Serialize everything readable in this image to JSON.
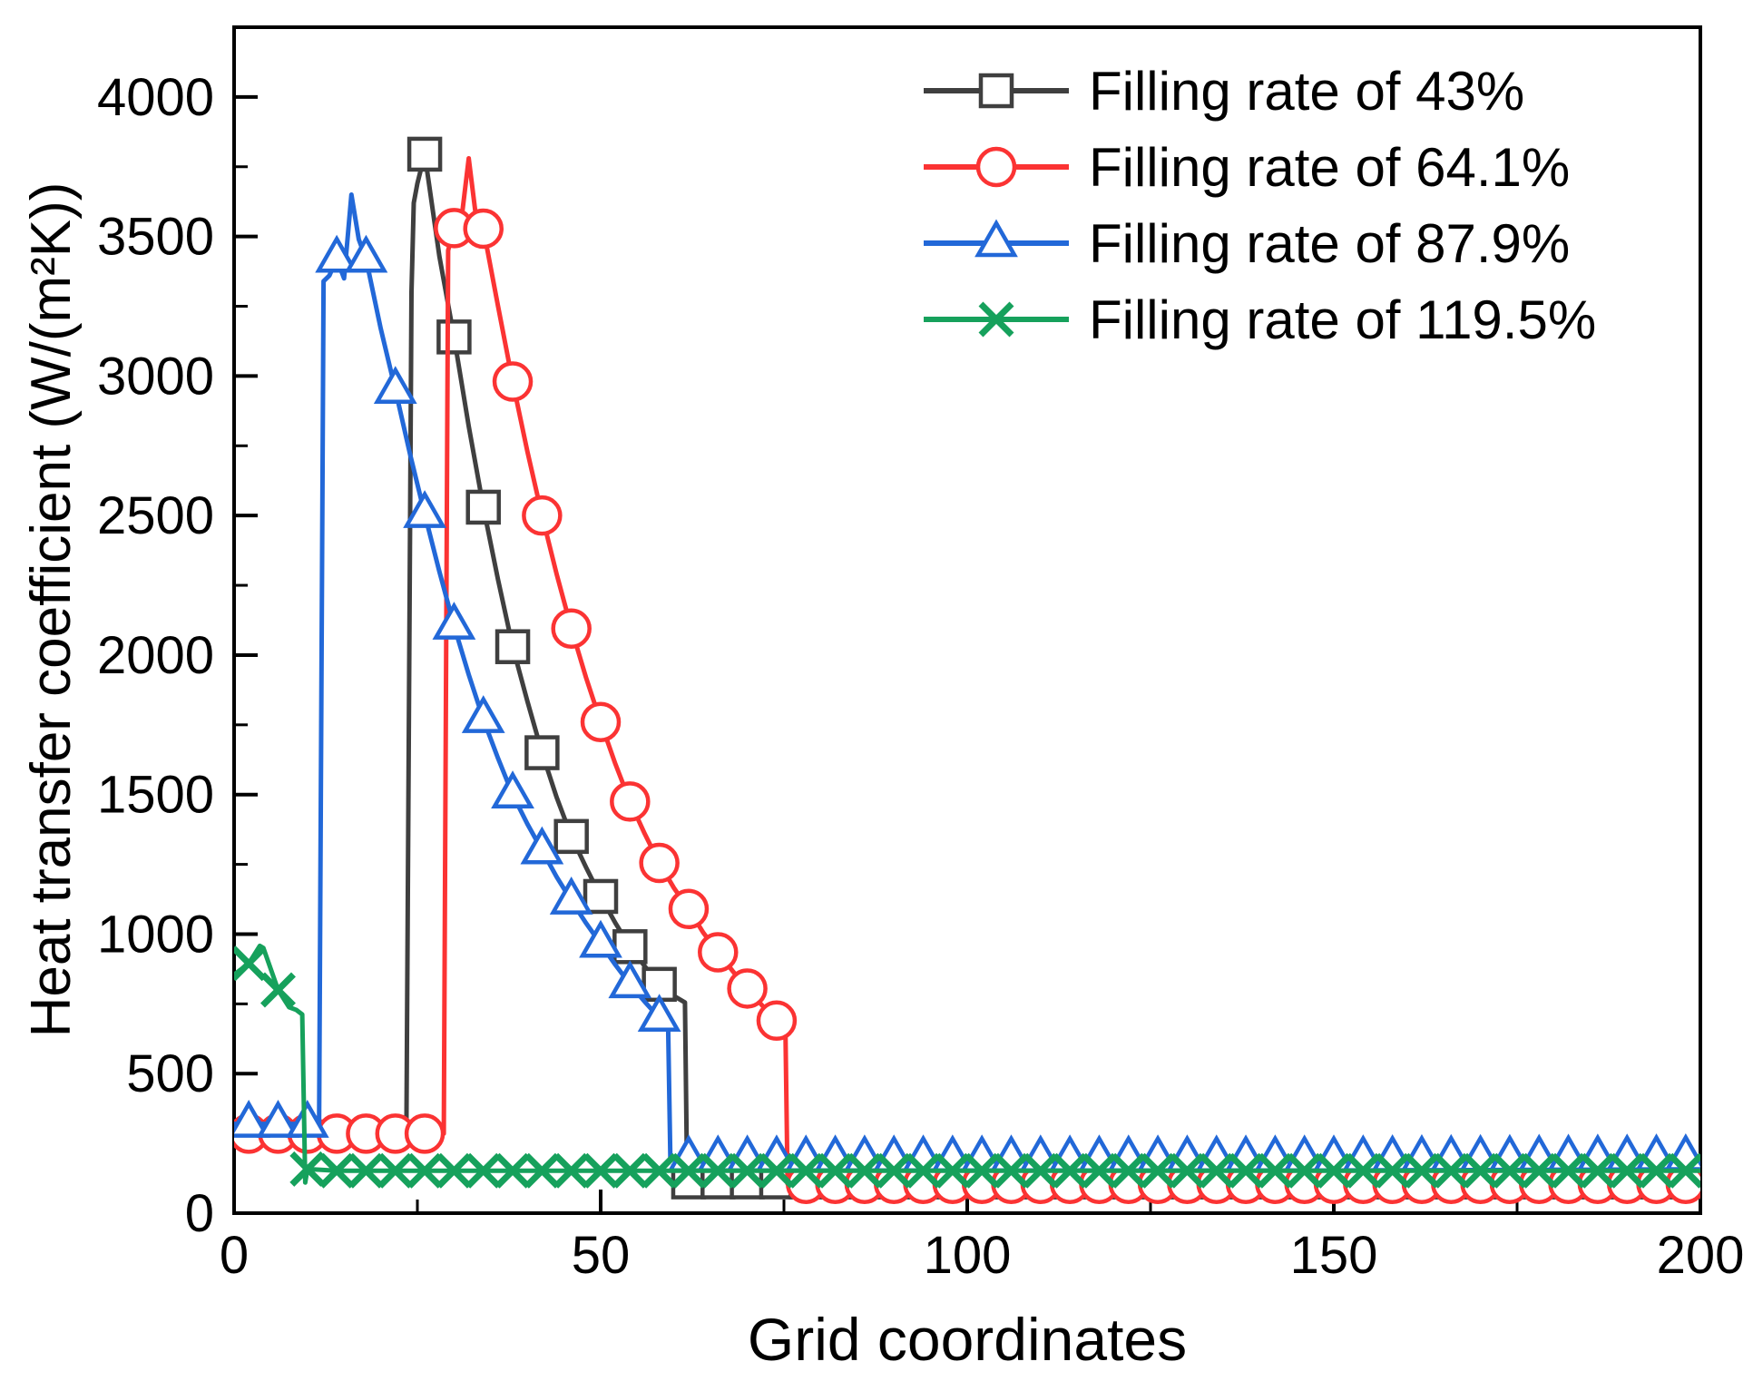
{
  "chart_data": {
    "type": "line",
    "title": "",
    "xlabel": "Grid coordinates",
    "ylabel": "Heat transfer coefficient (W/(m²K))",
    "xlim": [
      0,
      200
    ],
    "ylim": [
      0,
      4250
    ],
    "xticks": [
      0,
      50,
      100,
      150,
      200
    ],
    "xtick_minor_step": 25,
    "yticks": [
      0,
      500,
      1000,
      1500,
      2000,
      2500,
      3000,
      3500,
      4000
    ],
    "ytick_minor_step": 250,
    "grid": false,
    "legend_position": "top-right-inside",
    "marker_interval": 4,
    "frame_color": "#000000",
    "series": [
      {
        "name": "Filling rate of 43%",
        "color": "#3f3f3f",
        "marker": "square",
        "marker_first_x": 26,
        "marker_last_x": 198,
        "points": [
          [
            0,
            295
          ],
          [
            6,
            295
          ],
          [
            12,
            295
          ],
          [
            18,
            295
          ],
          [
            23.5,
            295
          ],
          [
            24.2,
            3300
          ],
          [
            24.5,
            3620
          ],
          [
            25,
            3690
          ],
          [
            26,
            3795
          ],
          [
            28,
            3430
          ],
          [
            30,
            3140
          ],
          [
            32,
            2820
          ],
          [
            34,
            2530
          ],
          [
            36,
            2270
          ],
          [
            38,
            2030
          ],
          [
            40,
            1835
          ],
          [
            42,
            1650
          ],
          [
            44,
            1490
          ],
          [
            46,
            1350
          ],
          [
            48,
            1240
          ],
          [
            50,
            1135
          ],
          [
            52,
            1040
          ],
          [
            54,
            955
          ],
          [
            56,
            885
          ],
          [
            58,
            820
          ],
          [
            60,
            778
          ],
          [
            61.5,
            755
          ],
          [
            61.8,
            112
          ],
          [
            64,
            112
          ],
          [
            100,
            112
          ],
          [
            150,
            112
          ],
          [
            200,
            112
          ]
        ]
      },
      {
        "name": "Filling rate of 64.1%",
        "color": "#fb3333",
        "marker": "circle",
        "marker_first_x": 2,
        "marker_last_x": 198,
        "points": [
          [
            0,
            285
          ],
          [
            6,
            285
          ],
          [
            12,
            285
          ],
          [
            18,
            285
          ],
          [
            24,
            285
          ],
          [
            28.6,
            285
          ],
          [
            29.2,
            3450
          ],
          [
            30,
            3530
          ],
          [
            31,
            3560
          ],
          [
            32,
            3780
          ],
          [
            33,
            3570
          ],
          [
            34,
            3528
          ],
          [
            36,
            3250
          ],
          [
            38,
            2980
          ],
          [
            40,
            2730
          ],
          [
            42,
            2500
          ],
          [
            44,
            2290
          ],
          [
            46,
            2095
          ],
          [
            48,
            1920
          ],
          [
            50,
            1760
          ],
          [
            52,
            1610
          ],
          [
            54,
            1475
          ],
          [
            56,
            1360
          ],
          [
            58,
            1255
          ],
          [
            60,
            1165
          ],
          [
            62,
            1090
          ],
          [
            64,
            1005
          ],
          [
            66,
            935
          ],
          [
            68,
            868
          ],
          [
            70,
            805
          ],
          [
            72,
            745
          ],
          [
            74,
            690
          ],
          [
            75.2,
            665
          ],
          [
            75.5,
            105
          ],
          [
            78,
            105
          ],
          [
            120,
            105
          ],
          [
            160,
            105
          ],
          [
            200,
            105
          ]
        ]
      },
      {
        "name": "Filling rate of 87.9%",
        "color": "#2268d8",
        "marker": "triangle",
        "marker_first_x": 2,
        "marker_last_x": 198,
        "points": [
          [
            0,
            320
          ],
          [
            4,
            320
          ],
          [
            8,
            320
          ],
          [
            11.6,
            320
          ],
          [
            12.2,
            3340
          ],
          [
            13,
            3360
          ],
          [
            14,
            3420
          ],
          [
            15,
            3350
          ],
          [
            16,
            3650
          ],
          [
            17,
            3490
          ],
          [
            18,
            3420
          ],
          [
            20,
            3170
          ],
          [
            22,
            2950
          ],
          [
            24,
            2720
          ],
          [
            26,
            2505
          ],
          [
            28,
            2300
          ],
          [
            30,
            2105
          ],
          [
            32,
            1930
          ],
          [
            34,
            1770
          ],
          [
            36,
            1630
          ],
          [
            38,
            1500
          ],
          [
            40,
            1395
          ],
          [
            42,
            1300
          ],
          [
            44,
            1205
          ],
          [
            46,
            1120
          ],
          [
            48,
            1040
          ],
          [
            50,
            965
          ],
          [
            52,
            890
          ],
          [
            54,
            820
          ],
          [
            56,
            758
          ],
          [
            58,
            700
          ],
          [
            59.2,
            678
          ],
          [
            59.5,
            196
          ],
          [
            62,
            196
          ],
          [
            100,
            196
          ],
          [
            150,
            196
          ],
          [
            200,
            200
          ]
        ]
      },
      {
        "name": "Filling rate of 119.5%",
        "color": "#16a15c",
        "marker": "x",
        "marker_first_x": 2,
        "marker_last_x": 198,
        "points": [
          [
            0,
            855
          ],
          [
            2,
            895
          ],
          [
            3.5,
            958
          ],
          [
            4,
            950
          ],
          [
            6,
            800
          ],
          [
            7.5,
            738
          ],
          [
            8.5,
            728
          ],
          [
            9.3,
            712
          ],
          [
            9.7,
            110
          ],
          [
            10,
            158
          ],
          [
            14,
            152
          ],
          [
            60,
            152
          ],
          [
            120,
            152
          ],
          [
            200,
            152
          ]
        ]
      }
    ]
  }
}
